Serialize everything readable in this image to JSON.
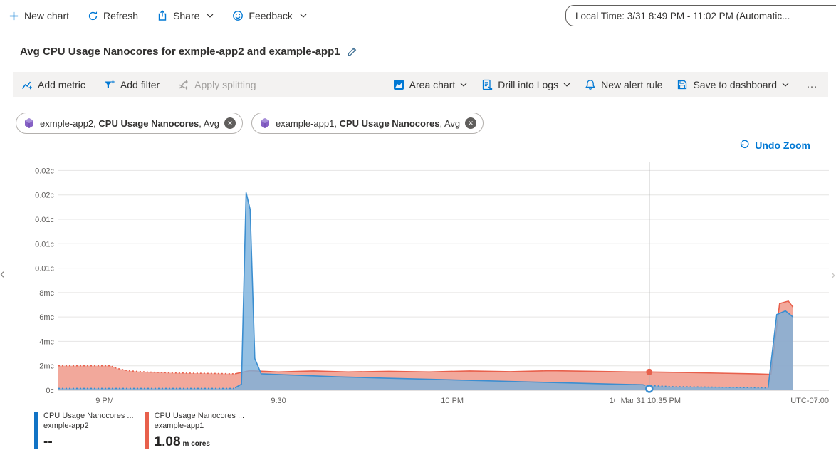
{
  "topbar": {
    "new_chart": "New chart",
    "refresh": "Refresh",
    "share": "Share",
    "feedback": "Feedback",
    "time_range": "Local Time: 3/31 8:49 PM - 11:02 PM (Automatic..."
  },
  "title": {
    "text": "Avg CPU Usage Nanocores for exmple-app2 and example-app1"
  },
  "toolbar": {
    "add_metric": "Add metric",
    "add_filter": "Add filter",
    "apply_splitting": "Apply splitting",
    "chart_type": "Area chart",
    "drill_into_logs": "Drill into Logs",
    "new_alert_rule": "New alert rule",
    "save_to_dashboard": "Save to dashboard",
    "more": "…"
  },
  "pills": [
    {
      "prefix": "exmple-app2, ",
      "metric": "CPU Usage Nanocores",
      "suffix": ", Avg"
    },
    {
      "prefix": "example-app1, ",
      "metric": "CPU Usage Nanocores",
      "suffix": ", Avg"
    }
  ],
  "undo_zoom": "Undo Zoom",
  "edge": {
    "left": "‹",
    "right": "›"
  },
  "chart_data": {
    "type": "area",
    "title": "Avg CPU Usage Nanocores for exmple-app2 and example-app1",
    "value_unit": "cores (c = cores, mc = millicores); numeric values below are in millicores",
    "x_unit": "minutes from chart start (~8:49 PM, Mar 31)",
    "xlim": [
      0,
      133
    ],
    "ylim": [
      0,
      18.9
    ],
    "grid": "horizontal",
    "y_ticks": [
      {
        "value": 0,
        "label": "0c"
      },
      {
        "value": 2,
        "label": "2mc"
      },
      {
        "value": 4,
        "label": "4mc"
      },
      {
        "value": 6,
        "label": "6mc"
      },
      {
        "value": 8,
        "label": "8mc"
      },
      {
        "value": 10,
        "label": "0.01c"
      },
      {
        "value": 12,
        "label": "0.01c"
      },
      {
        "value": 14,
        "label": "0.01c"
      },
      {
        "value": 16,
        "label": "0.02c"
      },
      {
        "value": 18,
        "label": "0.02c"
      }
    ],
    "x_ticks": [
      {
        "value": 8,
        "label": "9 PM"
      },
      {
        "value": 38,
        "label": "9:30"
      },
      {
        "value": 68,
        "label": "10 PM"
      },
      {
        "value": 98,
        "label": "10:30 PM"
      }
    ],
    "x_axis_right_label": "UTC-07:00",
    "crosshair": {
      "x": 102,
      "label": "Mar 31 10:35 PM",
      "series_values": [
        {
          "series": "exmple-app2",
          "y": 0.12,
          "marker": "ring"
        },
        {
          "series": "example-app1",
          "y": 1.5,
          "marker": "dot"
        }
      ]
    },
    "series": [
      {
        "name": "CPU Usage Nanocores (Avg), exmple-app2",
        "color": "#3b8ed0",
        "fill": "#79b0dc",
        "fill_opacity": 0.8,
        "segments": [
          {
            "style": "dotted",
            "points": [
              [
                0,
                0.15
              ],
              [
                30.5,
                0.15
              ]
            ]
          },
          {
            "style": "solid",
            "points": [
              [
                30.5,
                0.2
              ],
              [
                31.6,
                0.5
              ],
              [
                32.4,
                16.2
              ],
              [
                33.1,
                14.8
              ],
              [
                33.9,
                2.6
              ],
              [
                35,
                1.35
              ],
              [
                40,
                1.25
              ],
              [
                48,
                1.1
              ],
              [
                56,
                1.0
              ],
              [
                64,
                0.9
              ],
              [
                72,
                0.8
              ],
              [
                80,
                0.7
              ],
              [
                88,
                0.6
              ],
              [
                96,
                0.5
              ],
              [
                101,
                0.45
              ]
            ]
          },
          {
            "style": "dotted",
            "points": [
              [
                101,
                0.4
              ],
              [
                106,
                0.3
              ],
              [
                114,
                0.25
              ],
              [
                122.5,
                0.2
              ]
            ]
          },
          {
            "style": "solid",
            "points": [
              [
                122.5,
                0.2
              ],
              [
                124,
                6.2
              ],
              [
                125.5,
                6.5
              ],
              [
                126.8,
                6.0
              ]
            ]
          }
        ]
      },
      {
        "name": "CPU Usage Nanocores (Avg), example-app1",
        "color": "#e8604c",
        "fill": "#f0998a",
        "fill_opacity": 0.85,
        "segments": [
          {
            "style": "dotted",
            "points": [
              [
                0,
                2.0
              ],
              [
                9,
                2.0
              ],
              [
                10,
                1.8
              ],
              [
                12,
                1.6
              ],
              [
                15,
                1.5
              ],
              [
                20,
                1.42
              ],
              [
                26,
                1.38
              ],
              [
                30.5,
                1.35
              ]
            ]
          },
          {
            "style": "solid",
            "points": [
              [
                30.5,
                1.35
              ],
              [
                33,
                1.6
              ],
              [
                38,
                1.5
              ],
              [
                44,
                1.58
              ],
              [
                50,
                1.5
              ],
              [
                57,
                1.55
              ],
              [
                64,
                1.5
              ],
              [
                71,
                1.58
              ],
              [
                78,
                1.52
              ],
              [
                85,
                1.6
              ],
              [
                92,
                1.55
              ],
              [
                99,
                1.5
              ],
              [
                102,
                1.5
              ],
              [
                108,
                1.45
              ],
              [
                114,
                1.4
              ],
              [
                120,
                1.35
              ],
              [
                123,
                1.3
              ],
              [
                124.5,
                7.1
              ],
              [
                126,
                7.3
              ],
              [
                126.8,
                6.8
              ]
            ]
          }
        ]
      }
    ]
  },
  "legend": [
    {
      "title": "CPU Usage Nanocores ...",
      "resource": "exmple-app2",
      "value": "--",
      "unit": "",
      "color": "#1173c5"
    },
    {
      "title": "CPU Usage Nanocores ...",
      "resource": "example-app1",
      "value": "1.08",
      "unit": "m cores",
      "color": "#e8604c"
    }
  ]
}
